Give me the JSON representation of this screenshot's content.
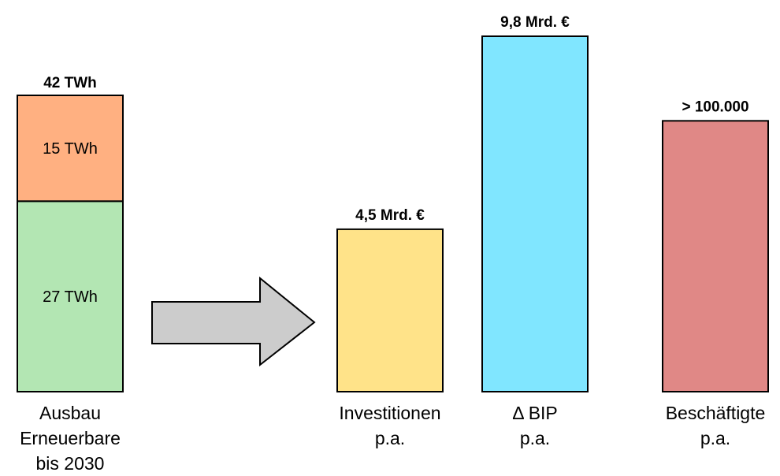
{
  "chart_data": {
    "type": "bar",
    "left_bar": {
      "total_label": "42 TWh",
      "segments": [
        {
          "label": "27 TWh",
          "value": 27,
          "color": "#b3e6b3"
        },
        {
          "label": "15 TWh",
          "value": 15,
          "color": "#ffb081"
        }
      ],
      "category_lines": [
        "Ausbau",
        "Erneuerbare",
        "bis 2030"
      ]
    },
    "bars": [
      {
        "value_label": "4,5 Mrd. €",
        "category_lines": [
          "Investitionen",
          "p.a."
        ],
        "color": "#ffe389",
        "rel_height": 0.457
      },
      {
        "value_label": "9,8 Mrd. €",
        "category_lines": [
          "Δ BIP",
          "p.a."
        ],
        "color": "#80e6ff",
        "rel_height": 1.0
      },
      {
        "value_label": "> 100.000",
        "category_lines": [
          "Beschäftigte",
          "p.a."
        ],
        "color": "#e08886",
        "rel_height": 0.762
      }
    ],
    "arrow_color": "#cccccc"
  }
}
